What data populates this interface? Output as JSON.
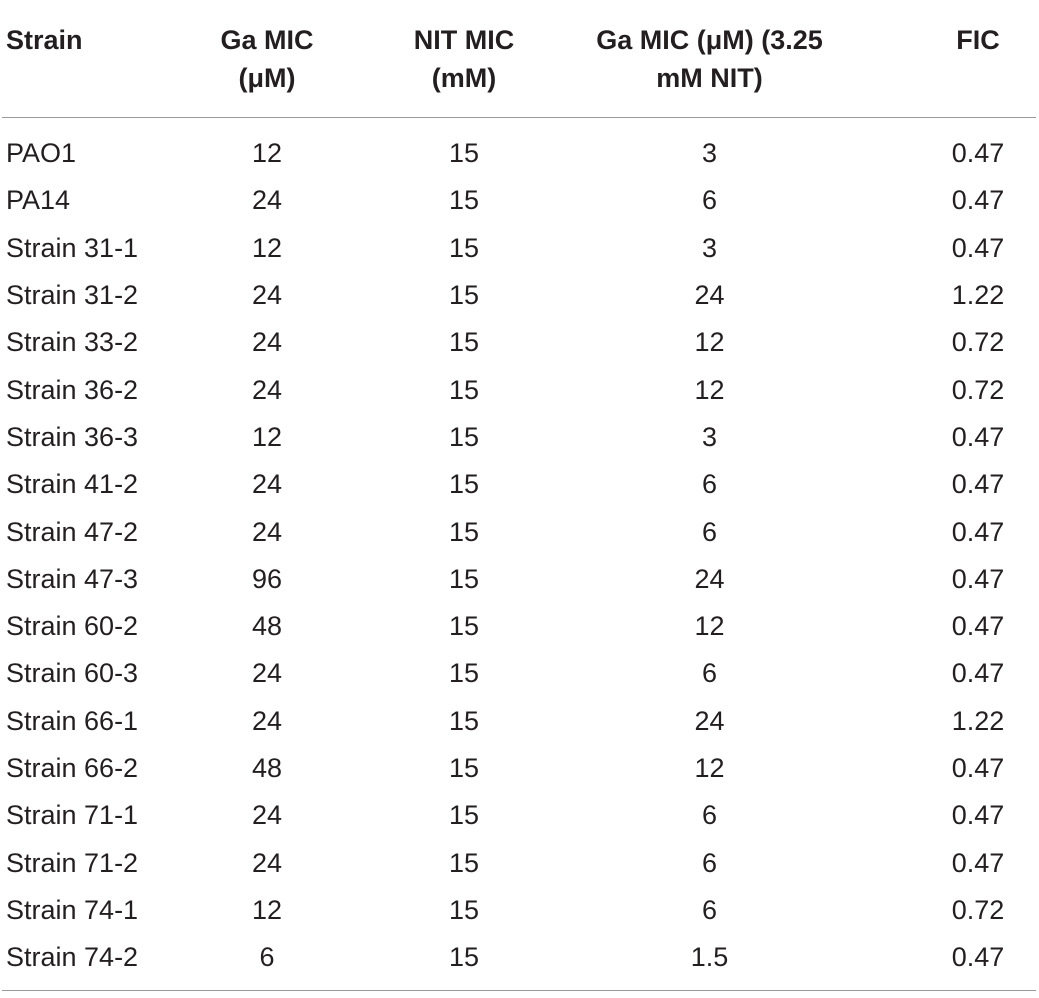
{
  "table": {
    "headers": {
      "strain": "Strain",
      "ga_mic_line1": "Ga MIC",
      "ga_mic_line2": "(μM)",
      "nit_mic_line1": "NIT MIC",
      "nit_mic_line2": "(mM)",
      "ga_mic_nit_line1": "Ga MIC (μM) (3.25",
      "ga_mic_nit_line2": "mM NIT)",
      "fic": "FIC"
    },
    "rows": [
      {
        "strain": "PAO1",
        "ga_mic": "12",
        "nit_mic": "15",
        "ga_mic_nit": "3",
        "fic": "0.47"
      },
      {
        "strain": "PA14",
        "ga_mic": "24",
        "nit_mic": "15",
        "ga_mic_nit": "6",
        "fic": "0.47"
      },
      {
        "strain": "Strain 31-1",
        "ga_mic": "12",
        "nit_mic": "15",
        "ga_mic_nit": "3",
        "fic": "0.47"
      },
      {
        "strain": "Strain 31-2",
        "ga_mic": "24",
        "nit_mic": "15",
        "ga_mic_nit": "24",
        "fic": "1.22"
      },
      {
        "strain": "Strain 33-2",
        "ga_mic": "24",
        "nit_mic": "15",
        "ga_mic_nit": "12",
        "fic": "0.72"
      },
      {
        "strain": "Strain 36-2",
        "ga_mic": "24",
        "nit_mic": "15",
        "ga_mic_nit": "12",
        "fic": "0.72"
      },
      {
        "strain": "Strain 36-3",
        "ga_mic": "12",
        "nit_mic": "15",
        "ga_mic_nit": "3",
        "fic": "0.47"
      },
      {
        "strain": "Strain 41-2",
        "ga_mic": "24",
        "nit_mic": "15",
        "ga_mic_nit": "6",
        "fic": "0.47"
      },
      {
        "strain": "Strain 47-2",
        "ga_mic": "24",
        "nit_mic": "15",
        "ga_mic_nit": "6",
        "fic": "0.47"
      },
      {
        "strain": "Strain 47-3",
        "ga_mic": "96",
        "nit_mic": "15",
        "ga_mic_nit": "24",
        "fic": "0.47"
      },
      {
        "strain": "Strain 60-2",
        "ga_mic": "48",
        "nit_mic": "15",
        "ga_mic_nit": "12",
        "fic": "0.47"
      },
      {
        "strain": "Strain 60-3",
        "ga_mic": "24",
        "nit_mic": "15",
        "ga_mic_nit": "6",
        "fic": "0.47"
      },
      {
        "strain": "Strain 66-1",
        "ga_mic": "24",
        "nit_mic": "15",
        "ga_mic_nit": "24",
        "fic": "1.22"
      },
      {
        "strain": "Strain 66-2",
        "ga_mic": "48",
        "nit_mic": "15",
        "ga_mic_nit": "12",
        "fic": "0.47"
      },
      {
        "strain": "Strain 71-1",
        "ga_mic": "24",
        "nit_mic": "15",
        "ga_mic_nit": "6",
        "fic": "0.47"
      },
      {
        "strain": "Strain 71-2",
        "ga_mic": "24",
        "nit_mic": "15",
        "ga_mic_nit": "6",
        "fic": "0.47"
      },
      {
        "strain": "Strain 74-1",
        "ga_mic": "12",
        "nit_mic": "15",
        "ga_mic_nit": "6",
        "fic": "0.72"
      },
      {
        "strain": "Strain 74-2",
        "ga_mic": "6",
        "nit_mic": "15",
        "ga_mic_nit": "1.5",
        "fic": "0.47"
      }
    ]
  }
}
